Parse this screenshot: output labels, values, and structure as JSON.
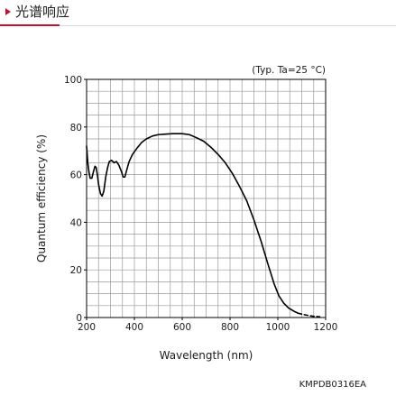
{
  "header": {
    "title": "光谱响应"
  },
  "chart_data": {
    "type": "line",
    "condition_note": "(Typ. Ta=25 °C)",
    "xlabel": "Wavelength (nm)",
    "ylabel": "Quantum efficiency (%)",
    "xlim": [
      200,
      1200
    ],
    "ylim": [
      0,
      100
    ],
    "xticks": [
      200,
      400,
      600,
      800,
      1000,
      1200
    ],
    "yticks": [
      0,
      20,
      40,
      60,
      80,
      100
    ],
    "grid": true,
    "series": [
      {
        "line_color": "#000000",
        "points": [
          [
            200,
            72
          ],
          [
            205,
            65
          ],
          [
            210,
            61
          ],
          [
            215,
            58.5
          ],
          [
            222,
            58.5
          ],
          [
            228,
            61
          ],
          [
            235,
            63.5
          ],
          [
            240,
            63
          ],
          [
            245,
            60
          ],
          [
            250,
            56
          ],
          [
            258,
            52
          ],
          [
            265,
            51
          ],
          [
            272,
            53
          ],
          [
            280,
            59
          ],
          [
            288,
            63
          ],
          [
            295,
            65.5
          ],
          [
            305,
            66
          ],
          [
            315,
            65
          ],
          [
            325,
            65.5
          ],
          [
            335,
            64
          ],
          [
            345,
            61.5
          ],
          [
            353,
            59
          ],
          [
            360,
            59
          ],
          [
            368,
            62
          ],
          [
            378,
            65.5
          ],
          [
            392,
            68.5
          ],
          [
            410,
            71
          ],
          [
            430,
            73.5
          ],
          [
            450,
            75
          ],
          [
            475,
            76.2
          ],
          [
            500,
            76.8
          ],
          [
            530,
            77
          ],
          [
            560,
            77.2
          ],
          [
            600,
            77.2
          ],
          [
            630,
            76.8
          ],
          [
            660,
            75.5
          ],
          [
            690,
            74
          ],
          [
            720,
            71.5
          ],
          [
            750,
            68.5
          ],
          [
            780,
            65
          ],
          [
            810,
            60.5
          ],
          [
            840,
            55
          ],
          [
            870,
            49
          ],
          [
            900,
            41
          ],
          [
            930,
            32
          ],
          [
            960,
            22
          ],
          [
            985,
            14
          ],
          [
            1005,
            9
          ],
          [
            1025,
            6
          ],
          [
            1045,
            4
          ],
          [
            1070,
            2.5
          ],
          [
            1085,
            1.8
          ]
        ]
      },
      {
        "line_color": "#000000",
        "dashed": true,
        "points": [
          [
            1085,
            1.8
          ],
          [
            1110,
            1.2
          ],
          [
            1130,
            0.8
          ],
          [
            1150,
            0.5
          ],
          [
            1175,
            0.3
          ]
        ]
      }
    ]
  },
  "figure_code": "KMPDB0316EA"
}
